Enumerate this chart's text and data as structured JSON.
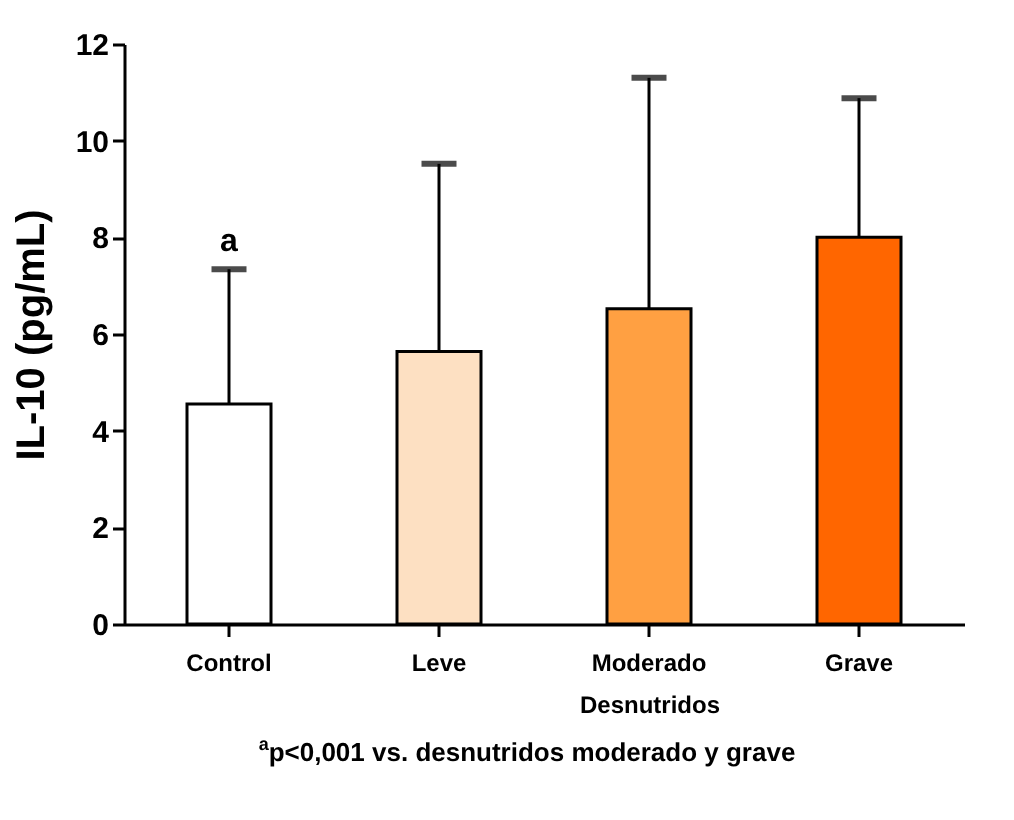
{
  "chart_data": {
    "type": "bar",
    "ylabel": "IL-10 (pg/mL)",
    "xlabel": "Desnutridos",
    "categories": [
      "Control",
      "Leve",
      "Moderado",
      "Grave"
    ],
    "values": [
      4.55,
      5.64,
      6.52,
      8.0
    ],
    "colors": [
      "#ffffff",
      "#fde0c2",
      "#ffa042",
      "#ff6600"
    ],
    "errors": [
      [
        4.55,
        7.34
      ],
      [
        5.64,
        9.52
      ],
      [
        6.52,
        11.3
      ],
      [
        8.0,
        10.88
      ]
    ],
    "ylim": [
      0,
      12
    ],
    "yticks": [
      0,
      2,
      4,
      6,
      8,
      10,
      12
    ],
    "grid": false,
    "legend": false,
    "annotations": [
      {
        "text": "a",
        "x": "Control",
        "y": 7.34
      },
      "$^{a}$p<0,001 vs. desnutridos moderado y grave"
    ]
  }
}
